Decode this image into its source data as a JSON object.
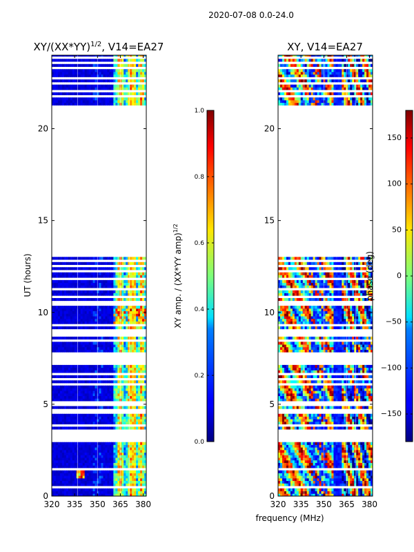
{
  "figure": {
    "suptitle": "2020-07-08 0.0-24.0",
    "shared_xlabel": "frequency (MHz)"
  },
  "chart_data": [
    {
      "type": "heatmap",
      "title_main": "XY/(XX*YY)",
      "title_exp": "1/2",
      "title_rest": ", V14=EA27",
      "ylabel": "UT (hours)",
      "xlim": [
        320,
        382
      ],
      "ylim": [
        0,
        24
      ],
      "xticks": [
        "320",
        "335",
        "350",
        "365",
        "380"
      ],
      "yticks": [
        "0",
        "5",
        "10",
        "15",
        "20"
      ],
      "data_gaps_hours": [
        [
          13.0,
          21.2
        ]
      ],
      "colormap": "jet",
      "colorbar": {
        "label_main": "XY amp. / (XX*YY amp)",
        "label_exp": "1/2",
        "range": [
          0.0,
          1.0
        ],
        "ticks": [
          "0.0",
          "0.2",
          "0.4",
          "0.6",
          "0.8",
          "1.0"
        ]
      }
    },
    {
      "type": "heatmap",
      "title": "XY, V14=EA27",
      "xlim": [
        320,
        382
      ],
      "ylim": [
        0,
        24
      ],
      "xticks": [
        "320",
        "335",
        "350",
        "365",
        "380"
      ],
      "yticks": [
        "0",
        "5",
        "10",
        "15",
        "20"
      ],
      "data_gaps_hours": [
        [
          13.0,
          21.2
        ]
      ],
      "colormap": "jet",
      "colorbar": {
        "label": "phase (deg)",
        "range": [
          -180,
          180
        ],
        "ticks": [
          "−150",
          "−100",
          "−50",
          "0",
          "50",
          "100",
          "150"
        ]
      }
    }
  ]
}
